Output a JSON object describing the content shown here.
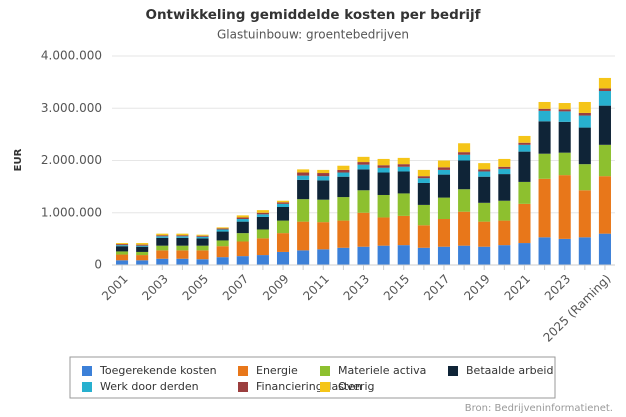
{
  "chart_data": {
    "type": "stacked-bar",
    "title": "Ontwikkeling gemiddelde kosten per bedrijf",
    "subtitle": "Glastuinbouw: groentebedrijven",
    "y_label": "EUR",
    "source": "Bron: Bedrijveninformatienet.",
    "categories": [
      "2001",
      null,
      "2003",
      null,
      "2005",
      null,
      "2007",
      null,
      "2009",
      null,
      "2011",
      null,
      "2013",
      null,
      "2015",
      null,
      "2017",
      null,
      "2019",
      null,
      "2021",
      null,
      "2023",
      null,
      "2025 (Raming)"
    ],
    "ylim": [
      0,
      4000000
    ],
    "yticks": [
      0,
      {
        "value": 1000000,
        "label": "1.000.000"
      },
      {
        "value": 2000000,
        "label": "2.000.000"
      },
      {
        "value": 3000000,
        "label": "3.000.000"
      },
      {
        "value": 4000000,
        "label": "4.000.000"
      }
    ],
    "grid": true,
    "series": [
      {
        "name": "Toegerekende kosten",
        "color": "#3c80d8",
        "values": [
          90000,
          90000,
          120000,
          120000,
          110000,
          150000,
          170000,
          190000,
          250000,
          280000,
          300000,
          330000,
          350000,
          370000,
          380000,
          330000,
          350000,
          370000,
          350000,
          380000,
          420000,
          530000,
          500000,
          530000,
          600000
        ]
      },
      {
        "name": "Energie",
        "color": "#e8771a",
        "values": [
          110000,
          100000,
          160000,
          160000,
          170000,
          210000,
          280000,
          320000,
          360000,
          550000,
          520000,
          520000,
          650000,
          540000,
          560000,
          430000,
          530000,
          650000,
          480000,
          470000,
          750000,
          1120000,
          1220000,
          900000,
          1100000
        ]
      },
      {
        "name": "Materiele activa",
        "color": "#8dc02f",
        "values": [
          60000,
          60000,
          90000,
          90000,
          90000,
          110000,
          160000,
          170000,
          240000,
          430000,
          430000,
          450000,
          430000,
          430000,
          430000,
          390000,
          410000,
          430000,
          360000,
          380000,
          420000,
          480000,
          430000,
          500000,
          600000
        ]
      },
      {
        "name": "Betaalde arbeid",
        "color": "#0f2437",
        "values": [
          100000,
          100000,
          150000,
          150000,
          140000,
          170000,
          220000,
          240000,
          260000,
          370000,
          370000,
          390000,
          400000,
          430000,
          420000,
          420000,
          440000,
          550000,
          500000,
          510000,
          580000,
          620000,
          590000,
          700000,
          750000
        ]
      },
      {
        "name": "Werk door derden",
        "color": "#27b0cf",
        "values": [
          20000,
          20000,
          30000,
          30000,
          30000,
          40000,
          50000,
          50000,
          60000,
          80000,
          80000,
          80000,
          90000,
          90000,
          90000,
          90000,
          90000,
          110000,
          100000,
          100000,
          130000,
          200000,
          200000,
          230000,
          280000
        ]
      },
      {
        "name": "Financieringslasten",
        "color": "#9b3e3e",
        "values": [
          20000,
          20000,
          20000,
          20000,
          20000,
          20000,
          30000,
          30000,
          30000,
          60000,
          60000,
          50000,
          50000,
          50000,
          50000,
          40000,
          50000,
          50000,
          40000,
          40000,
          40000,
          40000,
          40000,
          50000,
          50000
        ]
      },
      {
        "name": "Overig",
        "color": "#f5c518",
        "values": [
          20000,
          30000,
          30000,
          30000,
          20000,
          20000,
          40000,
          50000,
          30000,
          60000,
          60000,
          80000,
          100000,
          120000,
          120000,
          120000,
          130000,
          170000,
          120000,
          150000,
          130000,
          130000,
          120000,
          210000,
          200000
        ]
      }
    ]
  }
}
